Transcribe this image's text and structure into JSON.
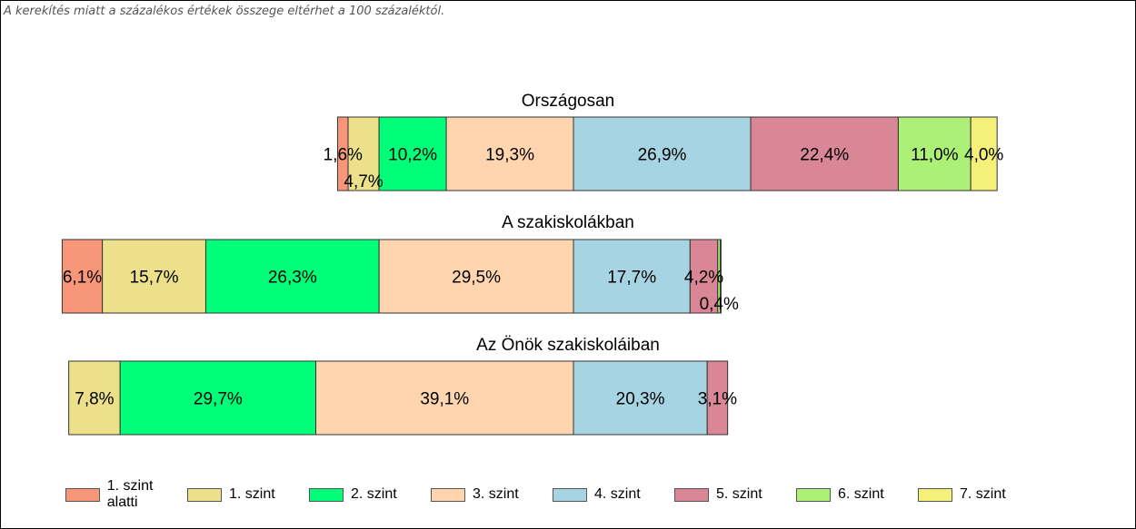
{
  "note": "A kerekítés miatt a  százalékos értékek összege eltérhet a 100 százaléktól.",
  "levels": [
    {
      "label": "1. szint alatti",
      "color": "#F79679"
    },
    {
      "label": "1. szint",
      "color": "#EDE08A"
    },
    {
      "label": "2. szint",
      "color": "#00FF78"
    },
    {
      "label": "3. szint",
      "color": "#FFD5B0"
    },
    {
      "label": "4. szint",
      "color": "#A7D4E2"
    },
    {
      "label": "5. szint",
      "color": "#D98697"
    },
    {
      "label": "6. szint",
      "color": "#ADF078"
    },
    {
      "label": "7. szint",
      "color": "#F5F07A"
    }
  ],
  "chart_data": [
    {
      "type": "bar",
      "stacked": "horizontal-diverging",
      "title": "Országosan",
      "categories": [
        "1. szint alatti",
        "1. szint",
        "2. szint",
        "3. szint",
        "4. szint",
        "5. szint",
        "6. szint",
        "7. szint"
      ],
      "values": [
        1.6,
        4.7,
        10.2,
        19.3,
        26.9,
        22.4,
        11.0,
        4.0
      ],
      "labels": [
        "1,6%",
        "4,7%",
        "10,2%",
        "19,3%",
        "26,9%",
        "22,4%",
        "11,0%",
        "4,0%"
      ]
    },
    {
      "type": "bar",
      "stacked": "horizontal-diverging",
      "title": "A szakiskolákban",
      "categories": [
        "1. szint alatti",
        "1. szint",
        "2. szint",
        "3. szint",
        "4. szint",
        "5. szint",
        "6. szint",
        "7. szint"
      ],
      "values": [
        6.1,
        15.7,
        26.3,
        29.5,
        17.7,
        4.2,
        0.4,
        0.1
      ],
      "labels": [
        "6,1%",
        "15,7%",
        "26,3%",
        "29,5%",
        "17,7%",
        "4,2%",
        "0,4%",
        ""
      ]
    },
    {
      "type": "bar",
      "stacked": "horizontal-diverging",
      "title": "Az Önök szakiskoláiban",
      "categories": [
        "1. szint alatti",
        "1. szint",
        "2. szint",
        "3. szint",
        "4. szint",
        "5. szint",
        "6. szint",
        "7. szint"
      ],
      "values": [
        0,
        7.8,
        29.7,
        39.1,
        20.3,
        3.1,
        0,
        0
      ],
      "labels": [
        "",
        "7,8%",
        "29,7%",
        "39,1%",
        "20,3%",
        "3,1%",
        "",
        ""
      ]
    }
  ]
}
